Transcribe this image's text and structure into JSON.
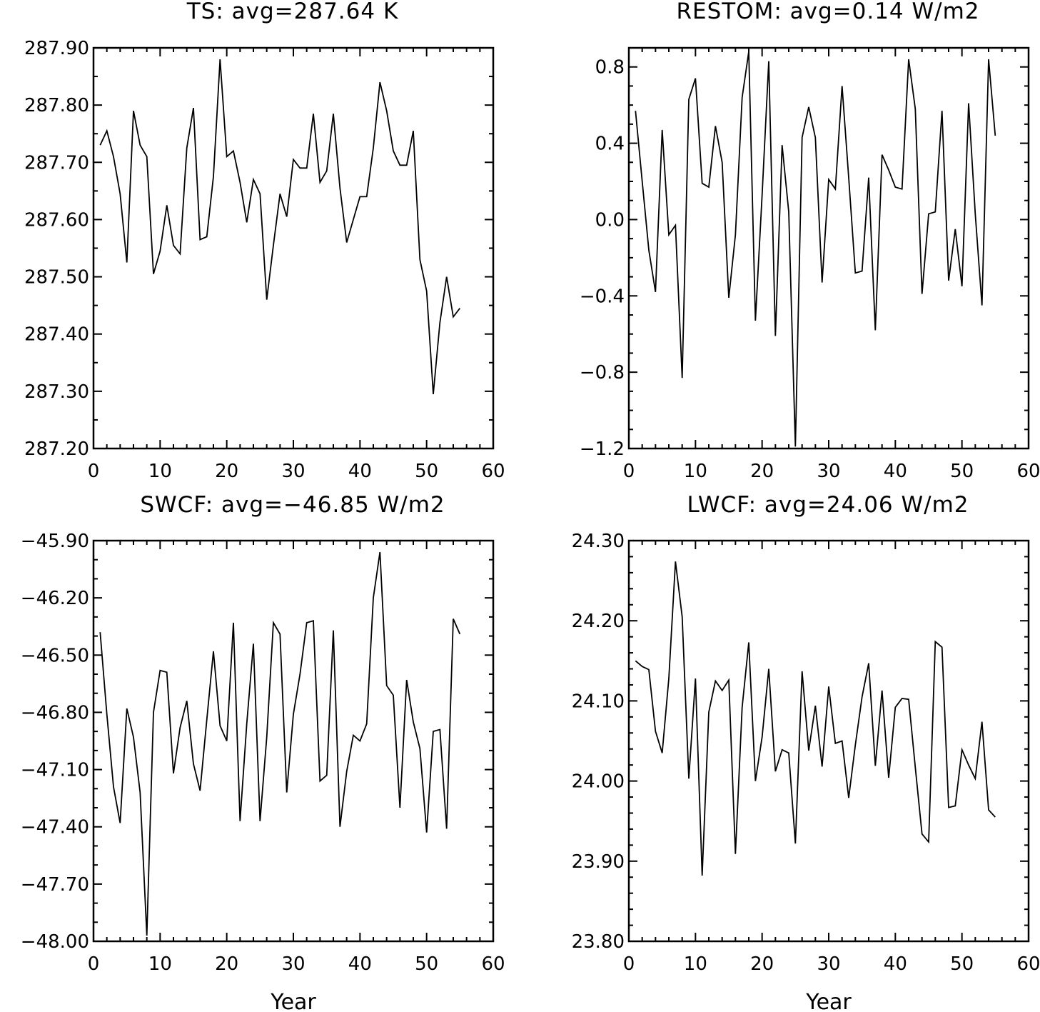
{
  "figure": {
    "xlabel": "Year"
  },
  "chart_data": [
    {
      "type": "line",
      "title": "TS: avg=287.64 K",
      "xlabel": "",
      "xlim": [
        0,
        60
      ],
      "xticks": [
        0,
        10,
        20,
        30,
        40,
        50,
        60
      ],
      "xtick_labels": [
        "0",
        "10",
        "20",
        "30",
        "40",
        "50",
        "60"
      ],
      "ylim": [
        287.2,
        287.9
      ],
      "yticks": [
        287.2,
        287.3,
        287.4,
        287.5,
        287.6,
        287.7,
        287.8,
        287.9
      ],
      "ytick_labels": [
        "287.20",
        "287.30",
        "287.40",
        "287.50",
        "287.60",
        "287.70",
        "287.80",
        "287.90"
      ],
      "yminor": 0.05,
      "x": [
        1,
        2,
        3,
        4,
        5,
        6,
        7,
        8,
        9,
        10,
        11,
        12,
        13,
        14,
        15,
        16,
        17,
        18,
        19,
        20,
        21,
        22,
        23,
        24,
        25,
        26,
        27,
        28,
        29,
        30,
        31,
        32,
        33,
        34,
        35,
        36,
        37,
        38,
        39,
        40,
        41,
        42,
        43,
        44,
        45,
        46,
        47,
        48,
        49,
        50,
        51,
        52,
        53,
        54,
        55
      ],
      "y": [
        287.73,
        287.755,
        287.71,
        287.645,
        287.525,
        287.79,
        287.73,
        287.71,
        287.505,
        287.545,
        287.625,
        287.555,
        287.54,
        287.725,
        287.795,
        287.565,
        287.57,
        287.675,
        287.88,
        287.71,
        287.72,
        287.665,
        287.595,
        287.67,
        287.645,
        287.46,
        287.555,
        287.645,
        287.605,
        287.705,
        287.69,
        287.69,
        287.785,
        287.665,
        287.685,
        287.785,
        287.655,
        287.56,
        287.6,
        287.64,
        287.64,
        287.725,
        287.84,
        287.79,
        287.72,
        287.695,
        287.695,
        287.755,
        287.53,
        287.475,
        287.295,
        287.42,
        287.5,
        287.43,
        287.445
      ]
    },
    {
      "type": "line",
      "title": "RESTOM: avg=0.14 W/m2",
      "xlabel": "",
      "xlim": [
        0,
        60
      ],
      "xticks": [
        0,
        10,
        20,
        30,
        40,
        50,
        60
      ],
      "xtick_labels": [
        "0",
        "10",
        "20",
        "30",
        "40",
        "50",
        "60"
      ],
      "ylim": [
        -1.2,
        0.9
      ],
      "yticks": [
        -1.2,
        -0.8,
        -0.4,
        0.0,
        0.4,
        0.8
      ],
      "ytick_labels": [
        "−1.2",
        "−0.8",
        "−0.4",
        "0.0",
        "0.4",
        "0.8"
      ],
      "yminor": 0.1,
      "x": [
        1,
        2,
        3,
        4,
        5,
        6,
        7,
        8,
        9,
        10,
        11,
        12,
        13,
        14,
        15,
        16,
        17,
        18,
        19,
        20,
        21,
        22,
        23,
        24,
        25,
        26,
        27,
        28,
        29,
        30,
        31,
        32,
        33,
        34,
        35,
        36,
        37,
        38,
        39,
        40,
        41,
        42,
        43,
        44,
        45,
        46,
        47,
        48,
        49,
        50,
        51,
        52,
        53,
        54,
        55
      ],
      "y": [
        0.57,
        0.2,
        -0.16,
        -0.38,
        0.47,
        -0.08,
        -0.03,
        -0.83,
        0.63,
        0.74,
        0.19,
        0.17,
        0.49,
        0.3,
        -0.41,
        -0.08,
        0.64,
        0.88,
        -0.53,
        0.13,
        0.83,
        -0.61,
        0.39,
        0.04,
        -1.19,
        0.43,
        0.59,
        0.43,
        -0.33,
        0.21,
        0.16,
        0.7,
        0.22,
        -0.28,
        -0.27,
        0.22,
        -0.58,
        0.34,
        0.26,
        0.17,
        0.16,
        0.84,
        0.58,
        -0.39,
        0.03,
        0.04,
        0.57,
        -0.32,
        -0.05,
        -0.35,
        0.61,
        0.03,
        -0.45,
        0.84,
        0.44
      ]
    },
    {
      "type": "line",
      "title": "SWCF: avg=−46.85 W/m2",
      "xlabel": "Year",
      "xlim": [
        0,
        60
      ],
      "xticks": [
        0,
        10,
        20,
        30,
        40,
        50,
        60
      ],
      "xtick_labels": [
        "0",
        "10",
        "20",
        "30",
        "40",
        "50",
        "60"
      ],
      "ylim": [
        -48.0,
        -45.9
      ],
      "yticks": [
        -48.0,
        -47.7,
        -47.4,
        -47.1,
        -46.8,
        -46.5,
        -46.2,
        -45.9
      ],
      "ytick_labels": [
        "−48.00",
        "−47.70",
        "−47.40",
        "−47.10",
        "−46.80",
        "−46.50",
        "−46.20",
        "−45.90"
      ],
      "yminor": 0.1,
      "x": [
        1,
        2,
        3,
        4,
        5,
        6,
        7,
        8,
        9,
        10,
        11,
        12,
        13,
        14,
        15,
        16,
        17,
        18,
        19,
        20,
        21,
        22,
        23,
        24,
        25,
        26,
        27,
        28,
        29,
        30,
        31,
        32,
        33,
        34,
        35,
        36,
        37,
        38,
        39,
        40,
        41,
        42,
        43,
        44,
        45,
        46,
        47,
        48,
        49,
        50,
        51,
        52,
        53,
        54,
        55
      ],
      "y": [
        -46.38,
        -46.81,
        -47.19,
        -47.38,
        -46.78,
        -46.93,
        -47.22,
        -47.97,
        -46.8,
        -46.58,
        -46.59,
        -47.12,
        -46.88,
        -46.74,
        -47.07,
        -47.21,
        -46.84,
        -46.48,
        -46.87,
        -46.95,
        -46.33,
        -47.37,
        -46.86,
        -46.44,
        -47.37,
        -46.93,
        -46.33,
        -46.39,
        -47.22,
        -46.81,
        -46.6,
        -46.33,
        -46.32,
        -47.16,
        -47.13,
        -46.37,
        -47.4,
        -47.11,
        -46.92,
        -46.95,
        -46.86,
        -46.2,
        -45.96,
        -46.66,
        -46.71,
        -47.3,
        -46.63,
        -46.85,
        -46.99,
        -47.43,
        -46.9,
        -46.89,
        -47.41,
        -46.31,
        -46.39
      ]
    },
    {
      "type": "line",
      "title": "LWCF: avg=24.06 W/m2",
      "xlabel": "Year",
      "xlim": [
        0,
        60
      ],
      "xticks": [
        0,
        10,
        20,
        30,
        40,
        50,
        60
      ],
      "xtick_labels": [
        "0",
        "10",
        "20",
        "30",
        "40",
        "50",
        "60"
      ],
      "ylim": [
        23.8,
        24.3
      ],
      "yticks": [
        23.8,
        23.9,
        24.0,
        24.1,
        24.2,
        24.3
      ],
      "ytick_labels": [
        "23.80",
        "23.90",
        "24.00",
        "24.10",
        "24.20",
        "24.30"
      ],
      "yminor": 0.02,
      "x": [
        1,
        2,
        3,
        4,
        5,
        6,
        7,
        8,
        9,
        10,
        11,
        12,
        13,
        14,
        15,
        16,
        17,
        18,
        19,
        20,
        21,
        22,
        23,
        24,
        25,
        26,
        27,
        28,
        29,
        30,
        31,
        32,
        33,
        34,
        35,
        36,
        37,
        38,
        39,
        40,
        41,
        42,
        43,
        44,
        45,
        46,
        47,
        48,
        49,
        50,
        51,
        52,
        53,
        54,
        55
      ],
      "y": [
        24.15,
        24.143,
        24.139,
        24.062,
        24.035,
        24.128,
        24.274,
        24.205,
        24.003,
        24.128,
        23.882,
        24.086,
        24.125,
        24.113,
        24.126,
        23.909,
        24.092,
        24.173,
        24.0,
        24.055,
        24.14,
        24.012,
        24.039,
        24.035,
        23.922,
        24.137,
        24.038,
        24.094,
        24.018,
        24.118,
        24.047,
        24.05,
        23.979,
        24.045,
        24.105,
        24.147,
        24.019,
        24.113,
        24.004,
        24.092,
        24.103,
        24.102,
        24.017,
        23.934,
        23.924,
        24.174,
        24.167,
        23.967,
        23.969,
        24.039,
        24.02,
        24.003,
        24.074,
        23.964,
        23.955
      ]
    }
  ]
}
